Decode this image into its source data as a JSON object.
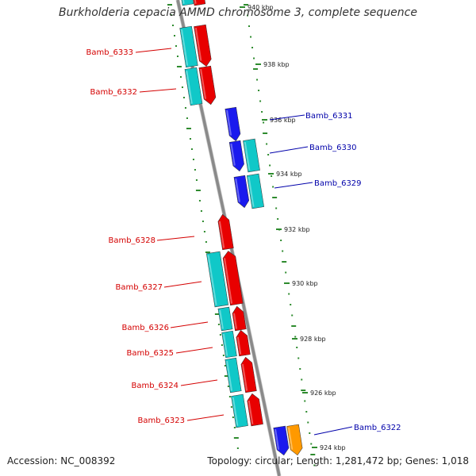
{
  "title": "Burkholderia cepacia AMMD chromosome 3, complete sequence",
  "footer": {
    "accession": "Accession: NC_008392",
    "topology": "Topology: circular; Length: 1,281,472 bp; Genes: 1,018"
  },
  "colors": {
    "backbone": "#8a8a8a",
    "ticks": "#2e8b2e",
    "forward_label": "#d40000",
    "reverse_label": "#0000aa",
    "gene_red": "#e80000",
    "gene_blue": "#1a1aee",
    "gene_cyan": "#10c8c8",
    "gene_orange": "#ff9900"
  },
  "scale_labels": [
    {
      "text": "940 kbp",
      "kbp": 940
    },
    {
      "text": "938 kbp",
      "kbp": 938
    },
    {
      "text": "936 kbp",
      "kbp": 936
    },
    {
      "text": "934 kbp",
      "kbp": 934
    },
    {
      "text": "932 kbp",
      "kbp": 932
    },
    {
      "text": "930 kbp",
      "kbp": 930
    },
    {
      "text": "928 kbp",
      "kbp": 928
    },
    {
      "text": "926 kbp",
      "kbp": 926
    },
    {
      "text": "924 kbp",
      "kbp": 924
    }
  ],
  "genes": [
    {
      "name": "Bamb_6333",
      "strand": "forward"
    },
    {
      "name": "Bamb_6332",
      "strand": "forward"
    },
    {
      "name": "Bamb_6331",
      "strand": "reverse"
    },
    {
      "name": "Bamb_6330",
      "strand": "reverse"
    },
    {
      "name": "Bamb_6329",
      "strand": "reverse"
    },
    {
      "name": "Bamb_6328",
      "strand": "forward"
    },
    {
      "name": "Bamb_6327",
      "strand": "forward"
    },
    {
      "name": "Bamb_6326",
      "strand": "forward"
    },
    {
      "name": "Bamb_6325",
      "strand": "forward"
    },
    {
      "name": "Bamb_6324",
      "strand": "forward"
    },
    {
      "name": "Bamb_6323",
      "strand": "forward"
    },
    {
      "name": "Bamb_6322",
      "strand": "reverse"
    }
  ]
}
